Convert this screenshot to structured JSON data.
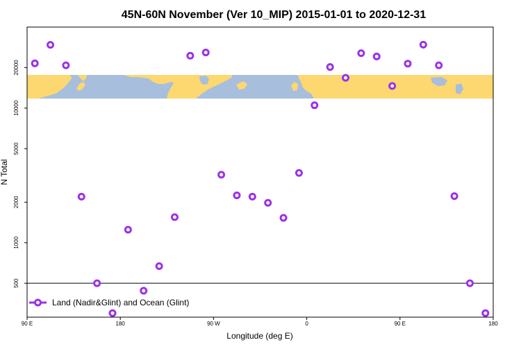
{
  "chart_data": {
    "type": "scatter",
    "title": "45N-60N November (Ver 10_MIP)   2015-01-01 to 2020-12-31",
    "xlabel": "Longitude (deg E)",
    "ylabel": "N Total",
    "x_ticks": [
      {
        "pos": 90,
        "label": "90 E"
      },
      {
        "pos": 180,
        "label": "180"
      },
      {
        "pos": 270,
        "label": "90 W"
      },
      {
        "pos": 360,
        "label": "0"
      },
      {
        "pos": 450,
        "label": "90 E"
      },
      {
        "pos": 540,
        "label": "180"
      }
    ],
    "xlim": [
      90,
      540
    ],
    "y_scale": "log",
    "ylim": [
      280,
      40000
    ],
    "y_ticks": [
      {
        "value": 500,
        "label": "500"
      },
      {
        "value": 1000,
        "label": "1000"
      },
      {
        "value": 2000,
        "label": "2000"
      },
      {
        "value": 5000,
        "label": "5000"
      },
      {
        "value": 10000,
        "label": "10000"
      },
      {
        "value": 20000,
        "label": "20000"
      }
    ],
    "reference_line": 500,
    "map_strip": {
      "colors": {
        "ocean": "#a7bedd",
        "land": "#fdd76f"
      }
    },
    "series": [
      {
        "name": "Land (Nadir&Glint) and Ocean (Glint)",
        "color": "#9b30e8",
        "points": [
          {
            "x": 97.5,
            "y": 21500
          },
          {
            "x": 112.5,
            "y": 29500
          },
          {
            "x": 127.5,
            "y": 20800
          },
          {
            "x": 142.5,
            "y": 2200
          },
          {
            "x": 157.5,
            "y": 500
          },
          {
            "x": 172.5,
            "y": 300
          },
          {
            "x": 187.5,
            "y": 1250
          },
          {
            "x": 202.5,
            "y": 440
          },
          {
            "x": 217.5,
            "y": 670
          },
          {
            "x": 232.5,
            "y": 1550
          },
          {
            "x": 247.5,
            "y": 24500
          },
          {
            "x": 262.5,
            "y": 25900
          },
          {
            "x": 277.5,
            "y": 3200
          },
          {
            "x": 292.5,
            "y": 2250
          },
          {
            "x": 307.5,
            "y": 2200
          },
          {
            "x": 322.5,
            "y": 1980
          },
          {
            "x": 337.5,
            "y": 1530
          },
          {
            "x": 352.5,
            "y": 3300
          },
          {
            "x": 367.5,
            "y": 10500
          },
          {
            "x": 382.5,
            "y": 20200
          },
          {
            "x": 397.5,
            "y": 16800
          },
          {
            "x": 412.5,
            "y": 25600
          },
          {
            "x": 427.5,
            "y": 24200
          },
          {
            "x": 442.5,
            "y": 14600
          },
          {
            "x": 457.5,
            "y": 21400
          },
          {
            "x": 472.5,
            "y": 29600
          },
          {
            "x": 487.5,
            "y": 20800
          },
          {
            "x": 502.5,
            "y": 2220
          },
          {
            "x": 517.5,
            "y": 500
          },
          {
            "x": 532.5,
            "y": 300
          }
        ]
      }
    ],
    "legend": {
      "position": "bottom-left"
    },
    "grid": false
  }
}
